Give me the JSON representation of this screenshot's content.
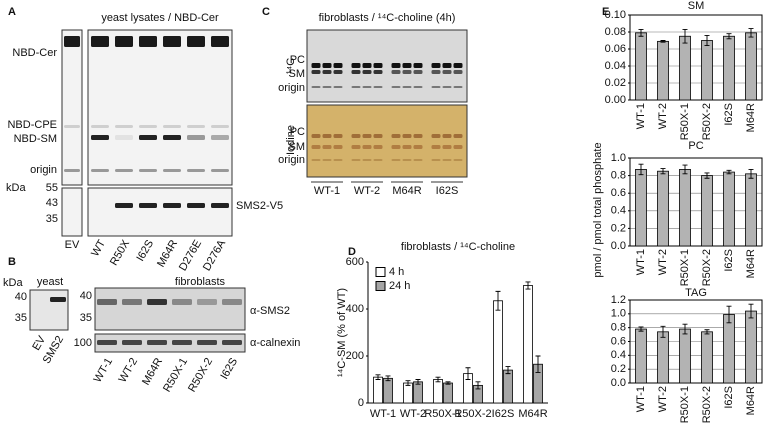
{
  "panels": {
    "A": {
      "label": "A",
      "title": "yeast lysates / NBD-Cer",
      "lipids": [
        "NBD-Cer",
        "NBD-CPE",
        "NBD-SM",
        "origin"
      ],
      "kda_unit": "kDa",
      "kda": [
        55,
        43,
        35
      ],
      "blot": "SMS2-V5",
      "lanes": [
        "EV",
        "WT",
        "R50X",
        "I62S",
        "M64R",
        "D276E",
        "D276A"
      ]
    },
    "B": {
      "label": "B",
      "kda_unit": "kDa",
      "yeast": {
        "title": "yeast",
        "kda": [
          40,
          35
        ],
        "lanes": [
          "EV",
          "SMS2"
        ]
      },
      "fibroblasts": {
        "title": "fibroblasts",
        "kda": [
          40,
          35,
          100
        ],
        "blots": [
          "α-SMS2",
          "α-calnexin"
        ],
        "lanes": [
          "WT-1",
          "WT-2",
          "M64R",
          "R50X-1",
          "R50X-2",
          "I62S"
        ]
      }
    },
    "C": {
      "label": "C",
      "title": "fibroblasts / ¹⁴C-choline (4h)",
      "gels": [
        "¹⁴C",
        "Iodine"
      ],
      "top_bands": [
        "PC",
        "SM",
        "origin"
      ],
      "bottom_bands": [
        "PC",
        "SM",
        "origin"
      ],
      "groups": [
        "WT-1",
        "WT-2",
        "M64R",
        "I62S"
      ]
    },
    "D": {
      "label": "D"
    },
    "E": {
      "label": "E",
      "ylabel": "pmol / pmol total phosphate"
    }
  },
  "chart_data": [
    {
      "type": "bar",
      "title": "fibroblasts / ¹⁴C-choline",
      "ylabel": "¹⁴C-SM (% of WT)",
      "categories": [
        "WT-1",
        "WT-2",
        "R50X-1",
        "R50X-2",
        "I62S",
        "M64R"
      ],
      "series": [
        {
          "name": "4 h",
          "color": "#ffffff",
          "values": [
            110,
            85,
            100,
            125,
            435,
            500
          ],
          "errors": [
            10,
            10,
            10,
            25,
            40,
            15
          ]
        },
        {
          "name": "24 h",
          "color": "#a6a6a6",
          "values": [
            105,
            90,
            85,
            75,
            140,
            165
          ],
          "errors": [
            10,
            10,
            5,
            15,
            15,
            35
          ]
        }
      ],
      "ylim": [
        0,
        600
      ],
      "yticks": [
        0,
        200,
        400,
        600
      ],
      "legend": "upper left",
      "grid": false
    },
    {
      "type": "bar",
      "title": "SM",
      "categories": [
        "WT-1",
        "WT-2",
        "R50X-1",
        "R50X-2",
        "I62S",
        "M64R"
      ],
      "values": [
        0.079,
        0.069,
        0.075,
        0.07,
        0.075,
        0.079
      ],
      "errors": [
        0.004,
        0.001,
        0.008,
        0.006,
        0.003,
        0.005
      ],
      "color": "#b3b3b3",
      "ylim": [
        0,
        0.1
      ],
      "yticks": [
        {
          "value": 0,
          "label": "0.00"
        },
        {
          "value": 0.02,
          "label": "0.02"
        },
        {
          "value": 0.04,
          "label": "0.04"
        },
        {
          "value": 0.06,
          "label": "0.06"
        },
        {
          "value": 0.08,
          "label": "0.08"
        },
        {
          "value": 0.1,
          "label": "0.10"
        }
      ],
      "grid": true
    },
    {
      "type": "bar",
      "title": "PC",
      "categories": [
        "WT-1",
        "WT-2",
        "R50X-1",
        "R50X-2",
        "I62S",
        "M64R"
      ],
      "values": [
        0.87,
        0.85,
        0.87,
        0.8,
        0.84,
        0.82
      ],
      "errors": [
        0.06,
        0.03,
        0.05,
        0.03,
        0.02,
        0.05
      ],
      "color": "#b3b3b3",
      "ylim": [
        0,
        1
      ],
      "yticks": [
        {
          "value": 0,
          "label": "0.0"
        },
        0.2,
        0.4,
        0.6,
        0.8,
        {
          "value": 1,
          "label": "1.0"
        }
      ],
      "grid": true
    },
    {
      "type": "bar",
      "title": "TAG",
      "categories": [
        "WT-1",
        "WT-2",
        "R50X-1",
        "R50X-2",
        "I62S",
        "M64R"
      ],
      "values": [
        0.78,
        0.74,
        0.78,
        0.74,
        0.99,
        1.04
      ],
      "errors": [
        0.03,
        0.08,
        0.07,
        0.03,
        0.12,
        0.1
      ],
      "color": "#b3b3b3",
      "ylim": [
        0,
        1.2
      ],
      "yticks": [
        {
          "value": 0,
          "label": "0.0"
        },
        0.2,
        0.4,
        0.6,
        0.8,
        {
          "value": 1,
          "label": "1.0"
        },
        1.2
      ],
      "grid": true
    }
  ]
}
